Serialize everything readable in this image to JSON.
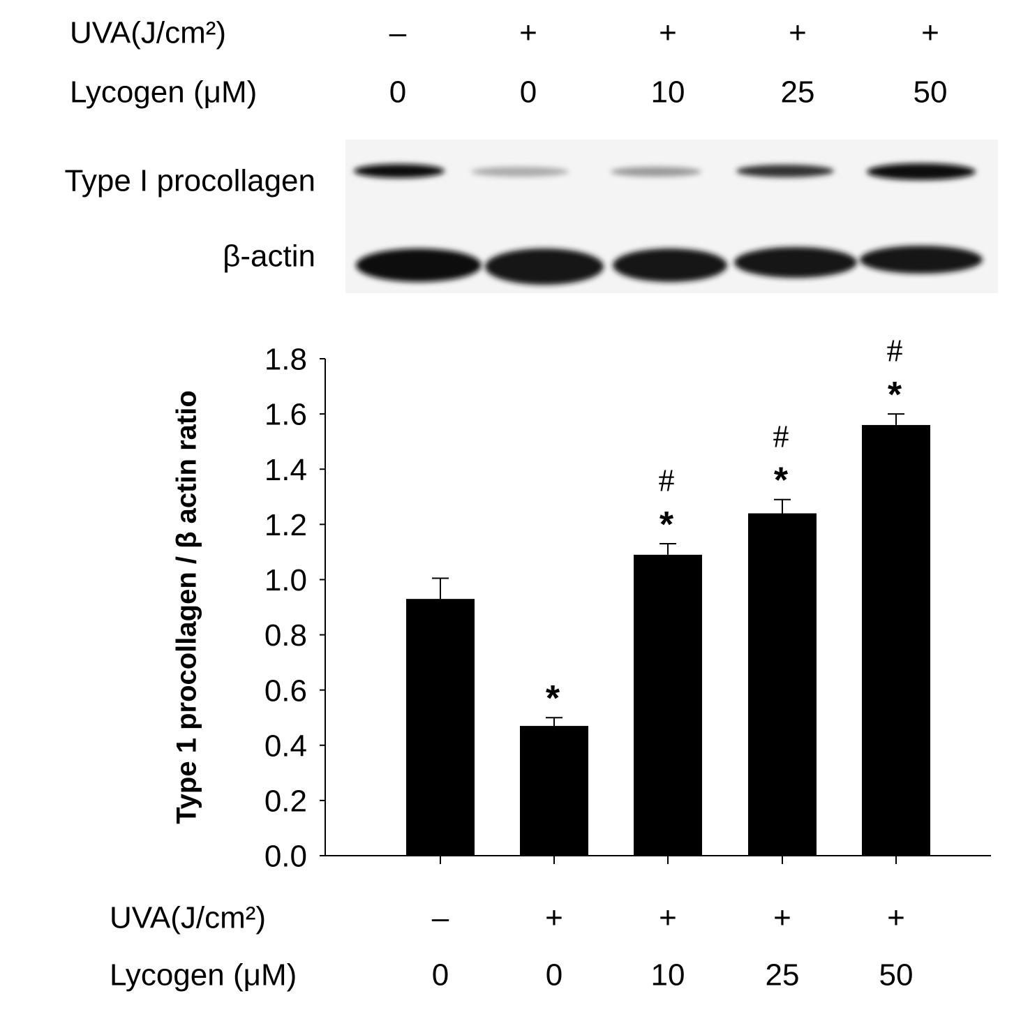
{
  "chart_data": {
    "type": "bar",
    "y_label": "Type 1 procollagen / β actin ratio",
    "treatments": [
      {
        "label": "UVA(J/cm²)",
        "values": [
          "–",
          "+",
          "+",
          "+",
          "+"
        ]
      },
      {
        "label": "Lycogen (μM)",
        "values": [
          "0",
          "0",
          "10",
          "25",
          "50"
        ]
      }
    ],
    "blot_rows": [
      "Type I procollagen",
      "β-actin"
    ],
    "values": [
      0.93,
      0.47,
      1.09,
      1.24,
      1.56
    ],
    "errors": [
      0.075,
      0.03,
      0.04,
      0.05,
      0.04
    ],
    "star_labels": [
      null,
      "*",
      "*",
      "*",
      "*"
    ],
    "hash_labels": [
      null,
      null,
      "#",
      "#",
      "#"
    ],
    "color": "#000000",
    "ylim": [
      0,
      1.8
    ],
    "yticks": [
      {
        "value": 0,
        "label": "0.0"
      },
      0.2,
      0.4,
      0.6,
      0.8,
      {
        "value": 1,
        "label": "1.0"
      },
      1.2,
      1.4,
      1.6,
      1.8
    ]
  }
}
